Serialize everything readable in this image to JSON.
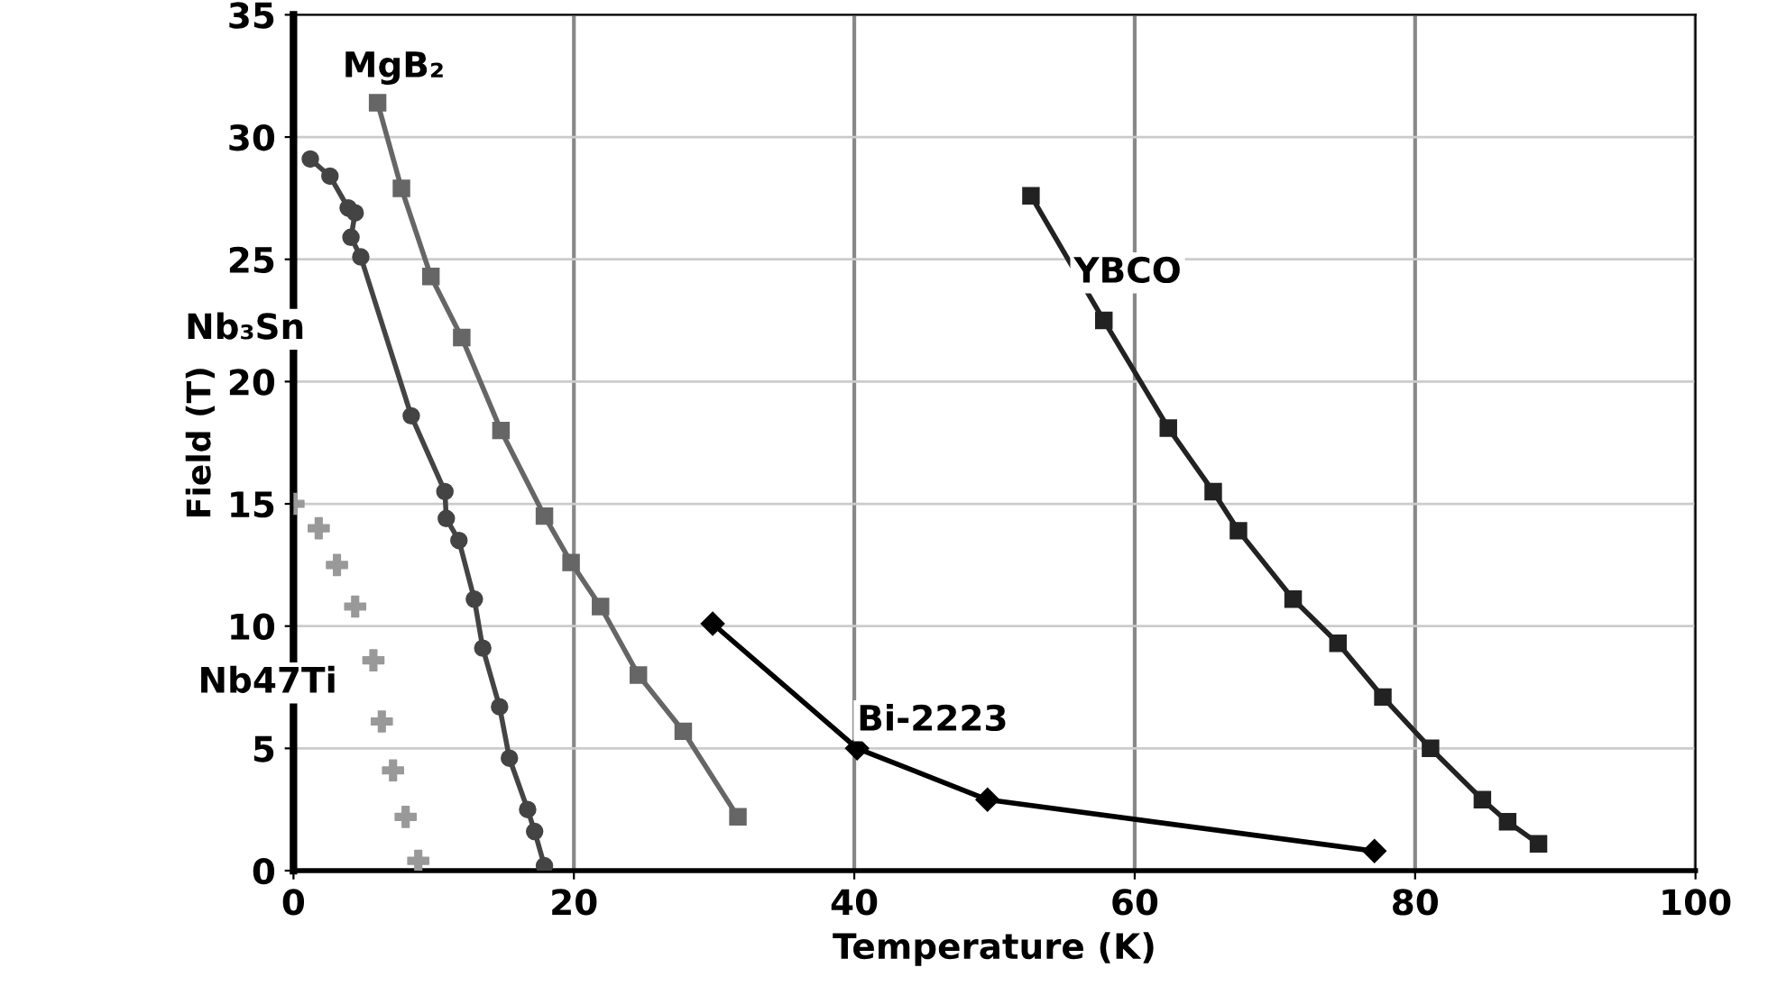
{
  "chart_data": {
    "type": "line",
    "xlabel": "Temperature (K)",
    "ylabel": "Field (T)",
    "xlim": [
      0,
      100
    ],
    "ylim": [
      0,
      35
    ],
    "xticks": [
      0,
      20,
      40,
      60,
      80,
      100
    ],
    "yticks": [
      0,
      5,
      10,
      15,
      20,
      25,
      30,
      35
    ],
    "grid": true,
    "series": [
      {
        "name": "Nb47Ti",
        "type": "scatter",
        "marker": "cross",
        "color": "#999999",
        "x": [
          0,
          1.8,
          3.1,
          4.4,
          5.7,
          6.3,
          7.1,
          8.0,
          8.9
        ],
        "values": [
          15.0,
          14.0,
          12.5,
          10.8,
          8.6,
          6.1,
          4.1,
          2.2,
          0.4
        ]
      },
      {
        "name": "Nb₃Sn",
        "marker": "circle",
        "color": "#444444",
        "x": [
          1.2,
          2.6,
          3.9,
          4.4,
          4.1,
          4.8,
          8.4,
          10.8,
          10.9,
          11.8,
          12.9,
          13.5,
          14.7,
          15.4,
          16.7,
          17.2,
          17.9
        ],
        "values": [
          29.1,
          28.4,
          27.1,
          26.9,
          25.9,
          25.1,
          18.6,
          15.5,
          14.4,
          13.5,
          11.1,
          9.1,
          6.7,
          4.6,
          2.5,
          1.6,
          0.2
        ]
      },
      {
        "name": "MgB₂",
        "marker": "square",
        "color": "#666666",
        "x": [
          6.0,
          7.7,
          9.8,
          12.0,
          14.8,
          17.9,
          19.8,
          21.9,
          24.6,
          27.8,
          31.7
        ],
        "values": [
          31.4,
          27.9,
          24.3,
          21.8,
          18.0,
          14.5,
          12.6,
          10.8,
          8.0,
          5.7,
          2.2
        ]
      },
      {
        "name": "Bi-2223",
        "marker": "diamond",
        "color": "#000000",
        "x": [
          29.9,
          40.2,
          49.5,
          77.1
        ],
        "values": [
          10.1,
          5.0,
          2.9,
          0.8
        ]
      },
      {
        "name": "YBCO",
        "marker": "square",
        "color": "#222222",
        "x": [
          52.6,
          57.8,
          62.4,
          65.6,
          67.4,
          71.3,
          74.5,
          77.7,
          81.1,
          84.8,
          86.6,
          88.8
        ],
        "values": [
          27.6,
          22.5,
          18.1,
          15.5,
          13.9,
          11.1,
          9.3,
          7.1,
          5.0,
          2.9,
          2.0,
          1.1
        ]
      }
    ]
  }
}
